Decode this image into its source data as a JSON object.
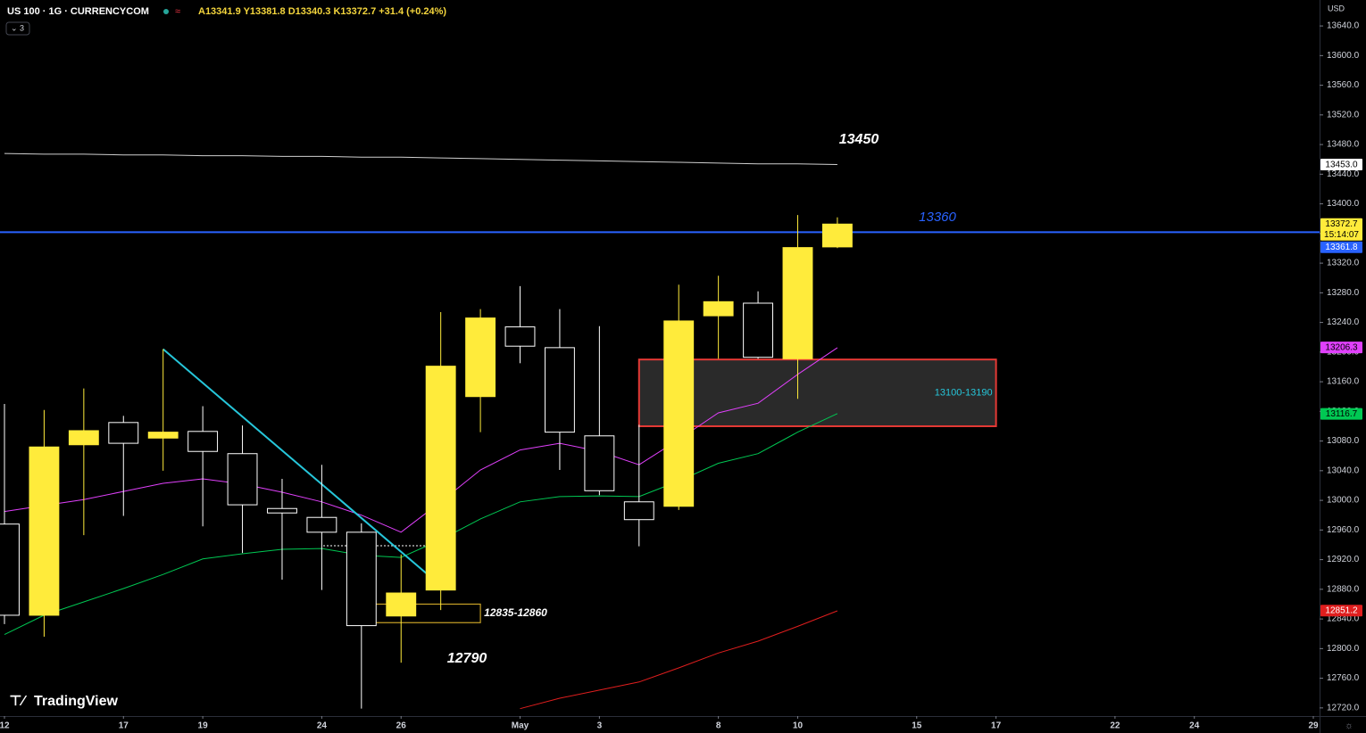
{
  "header": {
    "symbol": "US 100 · 1G · CURRENCYCOM",
    "ohlc": "A13341.9 Y13381.8 D13340.3 K13372.7 +31.4 (+0.24%)",
    "indicators": "3"
  },
  "brand": "TradingView",
  "chart_data": {
    "type": "candlestick",
    "currency": "USD",
    "x": [
      0,
      1,
      2,
      3,
      4,
      5,
      6,
      7,
      8,
      9,
      10,
      11,
      12,
      13,
      14,
      15,
      16,
      17,
      18,
      19,
      20,
      21
    ],
    "open": [
      12968,
      12845,
      13075,
      13105,
      13084,
      13093,
      13063,
      12989,
      12977,
      12957,
      12844,
      12879,
      13140,
      13234,
      13206,
      13087,
      12998,
      12992,
      13249,
      13266,
      13191,
      13341.9
    ],
    "high": [
      13130,
      13122,
      13151,
      13114,
      13204,
      13127,
      13101,
      13029,
      13048,
      12969,
      12927,
      13254,
      13258,
      13289,
      13258,
      13235,
      13102,
      13291,
      13303,
      13282,
      13385,
      13381.8
    ],
    "low": [
      12833,
      12816,
      12953,
      12979,
      13040,
      12965,
      12929,
      12893,
      12879,
      12719,
      12781,
      12852,
      13092,
      13185,
      13041,
      13007,
      12938,
      12987,
      13191,
      13191,
      13137,
      13340.3
    ],
    "close": [
      12845,
      13072,
      13094,
      13077,
      13092,
      13066,
      12994,
      12983,
      12957,
      12831,
      12875,
      13181,
      13246,
      13208,
      13092,
      13013,
      12974,
      13242,
      13268,
      13193,
      13341,
      13372.7
    ],
    "up_color": "#ffeb3b",
    "down_color": "#ffffff",
    "ylim": [
      12709,
      13675
    ],
    "yticks": [
      {
        "value": 13640,
        "label": "13640.0"
      },
      {
        "value": 13600,
        "label": "13600.0"
      },
      {
        "value": 13560,
        "label": "13560.0"
      },
      {
        "value": 13520,
        "label": "13520.0"
      },
      {
        "value": 13480,
        "label": "13480.0"
      },
      {
        "value": 13440,
        "label": "13440.0"
      },
      {
        "value": 13400,
        "label": "13400.0"
      },
      {
        "value": 13360,
        "label": "13360.0"
      },
      {
        "value": 13320,
        "label": "13320.0"
      },
      {
        "value": 13280,
        "label": "13280.0"
      },
      {
        "value": 13240,
        "label": "13240.0"
      },
      {
        "value": 13200,
        "label": "13200.0"
      },
      {
        "value": 13160,
        "label": "13160.0"
      },
      {
        "value": 13120,
        "label": "13120.0"
      },
      {
        "value": 13080,
        "label": "13080.0"
      },
      {
        "value": 13040,
        "label": "13040.0"
      },
      {
        "value": 13000,
        "label": "13000.0"
      },
      {
        "value": 12960,
        "label": "12960.0"
      },
      {
        "value": 12920,
        "label": "12920.0"
      },
      {
        "value": 12880,
        "label": "12880.0"
      },
      {
        "value": 12840,
        "label": "12840.0"
      },
      {
        "value": 12800,
        "label": "12800.0"
      },
      {
        "value": 12760,
        "label": "12760.0"
      },
      {
        "value": 12720,
        "label": "12720.0"
      }
    ],
    "xlim": [
      0,
      33
    ],
    "xticks": [
      {
        "value": 0,
        "label": "12"
      },
      {
        "value": 3,
        "label": "17"
      },
      {
        "value": 5,
        "label": "19"
      },
      {
        "value": 8,
        "label": "24"
      },
      {
        "value": 10,
        "label": "26"
      },
      {
        "value": 13,
        "label": "May"
      },
      {
        "value": 15,
        "label": "3"
      },
      {
        "value": 18,
        "label": "8"
      },
      {
        "value": 20,
        "label": "10"
      },
      {
        "value": 23,
        "label": "15"
      },
      {
        "value": 25,
        "label": "17"
      },
      {
        "value": 28,
        "label": "22"
      },
      {
        "value": 30,
        "label": "24"
      },
      {
        "value": 33,
        "label": "29"
      }
    ],
    "lines": [
      {
        "color": "#cfcfcf",
        "values": [
          13468,
          13467,
          13467,
          13466,
          13466,
          13465,
          13465,
          13464,
          13464,
          13463,
          13463,
          13462,
          13461,
          13460,
          13459,
          13458,
          13457,
          13456,
          13455,
          13454,
          13454,
          13453
        ]
      },
      {
        "color": "#e040fb",
        "values": [
          12985,
          12993,
          13001,
          13012,
          13023,
          13029,
          13022,
          13011,
          12998,
          12980,
          12957,
          12998,
          13041,
          13068,
          13077,
          13066,
          13048,
          13082,
          13118,
          13131,
          13170,
          13206
        ]
      },
      {
        "color": "#00c853",
        "values": [
          12819,
          12845,
          12863,
          12881,
          12900,
          12921,
          12928,
          12934,
          12935,
          12926,
          12923,
          12947,
          12975,
          12998,
          13005,
          13006,
          13005,
          13026,
          13050,
          13063,
          13092,
          13117
        ]
      },
      {
        "color": "#e01e1e",
        "values": [
          null,
          null,
          null,
          null,
          null,
          null,
          null,
          null,
          null,
          null,
          null,
          null,
          null,
          12719,
          12733,
          12744,
          12755,
          12774,
          12794,
          12810,
          12830,
          12851
        ]
      }
    ],
    "hline": {
      "value": 13361.8,
      "color": "#2962ff"
    },
    "trendline": {
      "x": [
        4,
        11
      ],
      "y": [
        13204,
        12885
      ],
      "color": "#26c6da"
    },
    "zones": [
      {
        "label": "12835-12860",
        "low": 12835,
        "high": 12860,
        "x": [
          9,
          12
        ],
        "color": "#c9a227",
        "label_color": "#ffffff"
      },
      {
        "label": "13100-13190",
        "low": 13100,
        "high": 13190,
        "x": [
          16,
          25
        ],
        "color": "#e53935",
        "label_color": "#26c6da"
      }
    ],
    "annotations": [
      {
        "text": "13450",
        "color": "#ffffff"
      },
      {
        "text": "13360",
        "color": "#2962ff"
      },
      {
        "text": "12790",
        "color": "#ffffff"
      }
    ],
    "price_tags": [
      {
        "value": 13453,
        "label": "13453.0",
        "color": "#ffffff",
        "text_color": "#000000"
      },
      {
        "value": 13372.7,
        "label": "13372.7",
        "countdown": "15:14:07",
        "color": "#ffeb3b",
        "text_color": "#000000"
      },
      {
        "value": 13361.8,
        "label": "13361.8",
        "color": "#2962ff",
        "text_color": "#ffffff"
      },
      {
        "value": 13206.3,
        "label": "13206.3",
        "color": "#e040fb",
        "text_color": "#000000"
      },
      {
        "value": 13116.7,
        "label": "13116.7",
        "color": "#00c853",
        "text_color": "#000000"
      },
      {
        "value": 12851.2,
        "label": "12851.2",
        "color": "#e01e1e",
        "text_color": "#ffffff"
      }
    ]
  }
}
